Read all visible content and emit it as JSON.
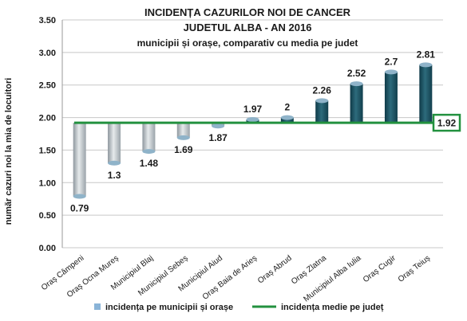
{
  "chart_data": {
    "type": "bar",
    "title_lines": [
      "INCIDENȚA CAZURILOR NOI DE CANCER",
      "JUDETUL ALBA - AN 2016",
      "municipii și orașe, comparativ cu media pe judet"
    ],
    "ylabel": "număr cazuri noi la mia de locuitori",
    "xlabel": "",
    "ylim": [
      0,
      3.5
    ],
    "yticks": [
      "0.00",
      "0.50",
      "1.00",
      "1.50",
      "2.00",
      "2.50",
      "3.00",
      "3.50"
    ],
    "baseline": 1.92,
    "categories": [
      "Oraș Câmpeni",
      "Oraș Ocna Mureș",
      "Municipiul Blaj",
      "Municipiul Sebeș",
      "Municipiul Aiud",
      "Oraș Baia de Arieș",
      "Oraș Abrud",
      "Oraș Zlatna",
      "Municipiul Alba Iulia",
      "Oraș Cugir",
      "Oraș Teiuș"
    ],
    "series": [
      {
        "name": "incidența pe municipii și orașe",
        "values": [
          0.79,
          1.3,
          1.48,
          1.69,
          1.87,
          1.97,
          2,
          2.26,
          2.52,
          2.7,
          2.81
        ],
        "labels": [
          "0.79",
          "1.3",
          "1.48",
          "1.69",
          "1.87",
          "1.97",
          "2",
          "2.26",
          "2.52",
          "2.7",
          "2.81"
        ]
      },
      {
        "name": "incidența medie pe județ",
        "type": "line",
        "value": 1.92,
        "label": "1.92"
      }
    ],
    "grid": true,
    "legend_position": "bottom",
    "colors": {
      "bar_above": "#1e5566",
      "bar_below": "#aab4bb",
      "bar_cap": "#8fb3c9",
      "average_line": "#23913f",
      "grid": "#c8c8c8",
      "legend_marker": "#8ab4d8"
    }
  }
}
